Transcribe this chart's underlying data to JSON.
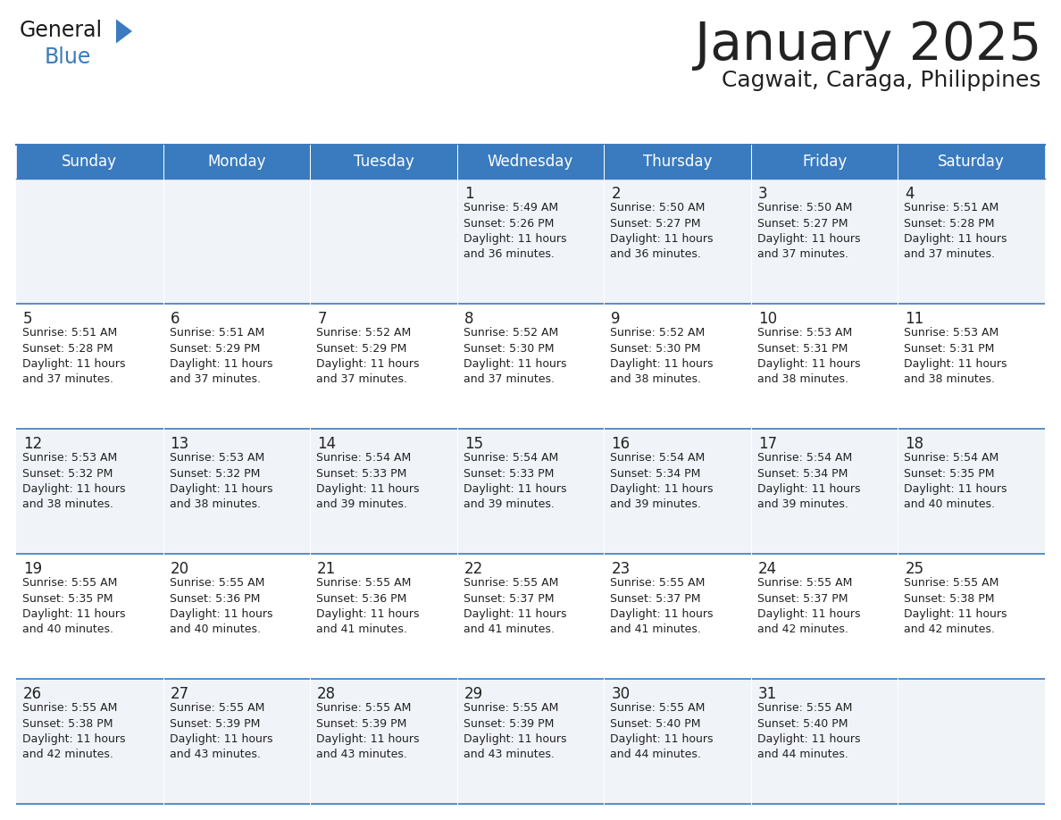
{
  "title": "January 2025",
  "subtitle": "Cagwait, Caraga, Philippines",
  "header_bg": "#3a7bbf",
  "header_text_color": "#ffffff",
  "day_names": [
    "Sunday",
    "Monday",
    "Tuesday",
    "Wednesday",
    "Thursday",
    "Friday",
    "Saturday"
  ],
  "row_colors": [
    "#f0f4f8",
    "#ffffff"
  ],
  "border_color": "#3a7bbf",
  "cell_border_color": "#3a7bbf",
  "text_color": "#222222",
  "calendar": [
    [
      {
        "day": "",
        "info": ""
      },
      {
        "day": "",
        "info": ""
      },
      {
        "day": "",
        "info": ""
      },
      {
        "day": "1",
        "info": "Sunrise: 5:49 AM\nSunset: 5:26 PM\nDaylight: 11 hours\nand 36 minutes."
      },
      {
        "day": "2",
        "info": "Sunrise: 5:50 AM\nSunset: 5:27 PM\nDaylight: 11 hours\nand 36 minutes."
      },
      {
        "day": "3",
        "info": "Sunrise: 5:50 AM\nSunset: 5:27 PM\nDaylight: 11 hours\nand 37 minutes."
      },
      {
        "day": "4",
        "info": "Sunrise: 5:51 AM\nSunset: 5:28 PM\nDaylight: 11 hours\nand 37 minutes."
      }
    ],
    [
      {
        "day": "5",
        "info": "Sunrise: 5:51 AM\nSunset: 5:28 PM\nDaylight: 11 hours\nand 37 minutes."
      },
      {
        "day": "6",
        "info": "Sunrise: 5:51 AM\nSunset: 5:29 PM\nDaylight: 11 hours\nand 37 minutes."
      },
      {
        "day": "7",
        "info": "Sunrise: 5:52 AM\nSunset: 5:29 PM\nDaylight: 11 hours\nand 37 minutes."
      },
      {
        "day": "8",
        "info": "Sunrise: 5:52 AM\nSunset: 5:30 PM\nDaylight: 11 hours\nand 37 minutes."
      },
      {
        "day": "9",
        "info": "Sunrise: 5:52 AM\nSunset: 5:30 PM\nDaylight: 11 hours\nand 38 minutes."
      },
      {
        "day": "10",
        "info": "Sunrise: 5:53 AM\nSunset: 5:31 PM\nDaylight: 11 hours\nand 38 minutes."
      },
      {
        "day": "11",
        "info": "Sunrise: 5:53 AM\nSunset: 5:31 PM\nDaylight: 11 hours\nand 38 minutes."
      }
    ],
    [
      {
        "day": "12",
        "info": "Sunrise: 5:53 AM\nSunset: 5:32 PM\nDaylight: 11 hours\nand 38 minutes."
      },
      {
        "day": "13",
        "info": "Sunrise: 5:53 AM\nSunset: 5:32 PM\nDaylight: 11 hours\nand 38 minutes."
      },
      {
        "day": "14",
        "info": "Sunrise: 5:54 AM\nSunset: 5:33 PM\nDaylight: 11 hours\nand 39 minutes."
      },
      {
        "day": "15",
        "info": "Sunrise: 5:54 AM\nSunset: 5:33 PM\nDaylight: 11 hours\nand 39 minutes."
      },
      {
        "day": "16",
        "info": "Sunrise: 5:54 AM\nSunset: 5:34 PM\nDaylight: 11 hours\nand 39 minutes."
      },
      {
        "day": "17",
        "info": "Sunrise: 5:54 AM\nSunset: 5:34 PM\nDaylight: 11 hours\nand 39 minutes."
      },
      {
        "day": "18",
        "info": "Sunrise: 5:54 AM\nSunset: 5:35 PM\nDaylight: 11 hours\nand 40 minutes."
      }
    ],
    [
      {
        "day": "19",
        "info": "Sunrise: 5:55 AM\nSunset: 5:35 PM\nDaylight: 11 hours\nand 40 minutes."
      },
      {
        "day": "20",
        "info": "Sunrise: 5:55 AM\nSunset: 5:36 PM\nDaylight: 11 hours\nand 40 minutes."
      },
      {
        "day": "21",
        "info": "Sunrise: 5:55 AM\nSunset: 5:36 PM\nDaylight: 11 hours\nand 41 minutes."
      },
      {
        "day": "22",
        "info": "Sunrise: 5:55 AM\nSunset: 5:37 PM\nDaylight: 11 hours\nand 41 minutes."
      },
      {
        "day": "23",
        "info": "Sunrise: 5:55 AM\nSunset: 5:37 PM\nDaylight: 11 hours\nand 41 minutes."
      },
      {
        "day": "24",
        "info": "Sunrise: 5:55 AM\nSunset: 5:37 PM\nDaylight: 11 hours\nand 42 minutes."
      },
      {
        "day": "25",
        "info": "Sunrise: 5:55 AM\nSunset: 5:38 PM\nDaylight: 11 hours\nand 42 minutes."
      }
    ],
    [
      {
        "day": "26",
        "info": "Sunrise: 5:55 AM\nSunset: 5:38 PM\nDaylight: 11 hours\nand 42 minutes."
      },
      {
        "day": "27",
        "info": "Sunrise: 5:55 AM\nSunset: 5:39 PM\nDaylight: 11 hours\nand 43 minutes."
      },
      {
        "day": "28",
        "info": "Sunrise: 5:55 AM\nSunset: 5:39 PM\nDaylight: 11 hours\nand 43 minutes."
      },
      {
        "day": "29",
        "info": "Sunrise: 5:55 AM\nSunset: 5:39 PM\nDaylight: 11 hours\nand 43 minutes."
      },
      {
        "day": "30",
        "info": "Sunrise: 5:55 AM\nSunset: 5:40 PM\nDaylight: 11 hours\nand 44 minutes."
      },
      {
        "day": "31",
        "info": "Sunrise: 5:55 AM\nSunset: 5:40 PM\nDaylight: 11 hours\nand 44 minutes."
      },
      {
        "day": "",
        "info": ""
      }
    ]
  ],
  "logo_text1": "General",
  "logo_text2": "Blue",
  "logo_text_color1": "#1a1a1a",
  "logo_text_color2": "#3a7bbf",
  "logo_triangle_color": "#3a7bbf",
  "title_fontsize": 42,
  "subtitle_fontsize": 18,
  "dayname_fontsize": 12,
  "daynum_fontsize": 12,
  "info_fontsize": 9
}
